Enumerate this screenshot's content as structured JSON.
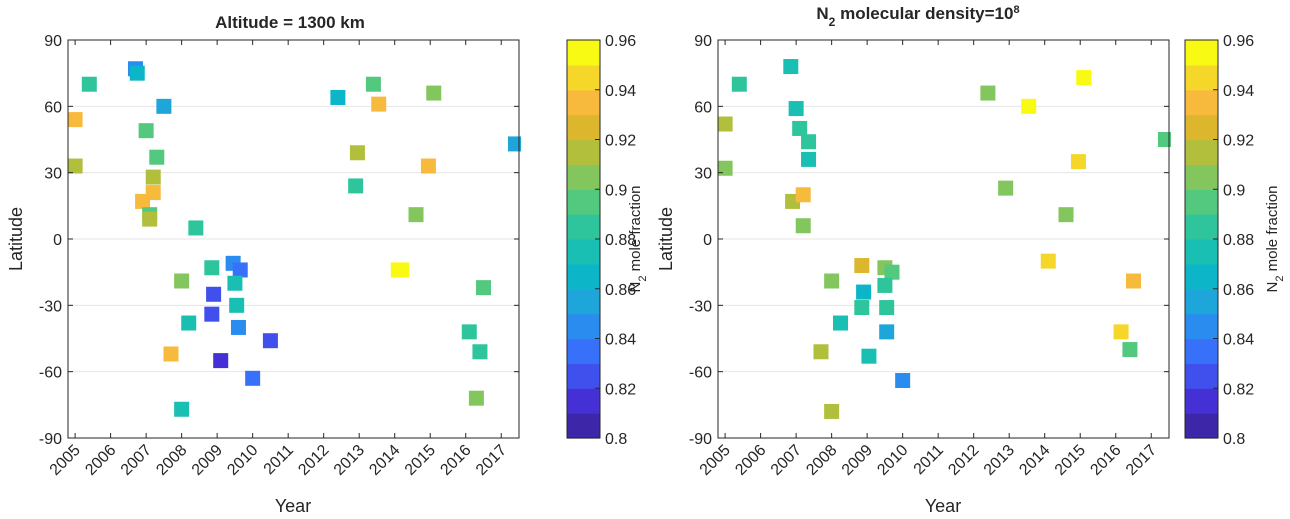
{
  "chart_data": [
    {
      "type": "scatter",
      "title": "Altitude = 1300 km",
      "xlabel": "Year",
      "ylabel": "Latitude",
      "xlim": [
        2004.8,
        2017.5
      ],
      "ylim": [
        -90,
        90
      ],
      "xticks": [
        "2005",
        "2006",
        "2007",
        "2008",
        "2009",
        "2010",
        "2011",
        "2012",
        "2013",
        "2014",
        "2015",
        "2016",
        "2017"
      ],
      "yticks": [
        "90",
        "60",
        "30",
        "0",
        "-30",
        "-60",
        "-90"
      ],
      "grid": "horizontal",
      "colorbar": {
        "label": "N",
        "label_sub": "2",
        "label_rest": " mole fraction",
        "range": [
          0.8,
          0.96
        ],
        "ticks": [
          "0.96",
          "0.94",
          "0.92",
          "0.9",
          "0.88",
          "0.86",
          "0.84",
          "0.82",
          "0.8"
        ],
        "levels": 16,
        "colors": [
          "#3e26a8",
          "#4530d5",
          "#4050ec",
          "#3771f9",
          "#2a8cef",
          "#1ea6db",
          "#0db5c9",
          "#18bfb2",
          "#2ec59c",
          "#53c87f",
          "#83c65e",
          "#b2bf3c",
          "#dcb72d",
          "#f8ba3d",
          "#f5d72a",
          "#f9fa14"
        ]
      },
      "points": [
        {
          "x": 2005.0,
          "y": 33,
          "v": 0.913
        },
        {
          "x": 2005.0,
          "y": 54,
          "v": 0.932
        },
        {
          "x": 2005.4,
          "y": 70,
          "v": 0.887
        },
        {
          "x": 2006.7,
          "y": 77,
          "v": 0.845
        },
        {
          "x": 2006.75,
          "y": 75,
          "v": 0.865
        },
        {
          "x": 2006.9,
          "y": 17,
          "v": 0.93
        },
        {
          "x": 2007.0,
          "y": 49,
          "v": 0.893
        },
        {
          "x": 2007.2,
          "y": 21,
          "v": 0.936
        },
        {
          "x": 2007.2,
          "y": 28,
          "v": 0.918
        },
        {
          "x": 2007.1,
          "y": 11,
          "v": 0.898
        },
        {
          "x": 2007.1,
          "y": 9,
          "v": 0.913
        },
        {
          "x": 2007.3,
          "y": 37,
          "v": 0.892
        },
        {
          "x": 2007.5,
          "y": 60,
          "v": 0.855
        },
        {
          "x": 2007.7,
          "y": -52,
          "v": 0.932
        },
        {
          "x": 2008.0,
          "y": -19,
          "v": 0.905
        },
        {
          "x": 2008.2,
          "y": -38,
          "v": 0.877
        },
        {
          "x": 2008.4,
          "y": 5,
          "v": 0.883
        },
        {
          "x": 2008.0,
          "y": -77,
          "v": 0.877
        },
        {
          "x": 2008.85,
          "y": -13,
          "v": 0.885
        },
        {
          "x": 2008.9,
          "y": -25,
          "v": 0.822
        },
        {
          "x": 2008.85,
          "y": -34,
          "v": 0.822
        },
        {
          "x": 2009.1,
          "y": -55,
          "v": 0.81
        },
        {
          "x": 2009.45,
          "y": -11,
          "v": 0.845
        },
        {
          "x": 2009.65,
          "y": -14,
          "v": 0.832
        },
        {
          "x": 2009.5,
          "y": -20,
          "v": 0.875
        },
        {
          "x": 2009.55,
          "y": -30,
          "v": 0.872
        },
        {
          "x": 2009.6,
          "y": -40,
          "v": 0.842
        },
        {
          "x": 2010.0,
          "y": -63,
          "v": 0.832
        },
        {
          "x": 2010.5,
          "y": -46,
          "v": 0.822
        },
        {
          "x": 2012.4,
          "y": 64,
          "v": 0.862
        },
        {
          "x": 2012.9,
          "y": 24,
          "v": 0.885
        },
        {
          "x": 2012.95,
          "y": 39,
          "v": 0.912
        },
        {
          "x": 2013.4,
          "y": 70,
          "v": 0.895
        },
        {
          "x": 2013.55,
          "y": 61,
          "v": 0.935
        },
        {
          "x": 2014.1,
          "y": -14,
          "v": 0.96
        },
        {
          "x": 2014.2,
          "y": -14,
          "v": 0.955
        },
        {
          "x": 2014.6,
          "y": 11,
          "v": 0.903
        },
        {
          "x": 2014.95,
          "y": 33,
          "v": 0.93
        },
        {
          "x": 2015.1,
          "y": 66,
          "v": 0.903
        },
        {
          "x": 2016.1,
          "y": -42,
          "v": 0.885
        },
        {
          "x": 2016.3,
          "y": -72,
          "v": 0.9
        },
        {
          "x": 2016.4,
          "y": -51,
          "v": 0.88
        },
        {
          "x": 2016.5,
          "y": -22,
          "v": 0.892
        },
        {
          "x": 2017.4,
          "y": 43,
          "v": 0.858
        }
      ]
    },
    {
      "type": "scatter",
      "title": "N",
      "title_sub": "2",
      "title_rest": " molecular density=10",
      "title_sup": "8",
      "xlabel": "Year",
      "ylabel": "Latitude",
      "xlim": [
        2004.8,
        2017.5
      ],
      "ylim": [
        -90,
        90
      ],
      "xticks": [
        "2005",
        "2006",
        "2007",
        "2008",
        "2009",
        "2010",
        "2011",
        "2012",
        "2013",
        "2014",
        "2015",
        "2016",
        "2017"
      ],
      "yticks": [
        "90",
        "60",
        "30",
        "0",
        "-30",
        "-60",
        "-90"
      ],
      "grid": "horizontal",
      "colorbar": {
        "label": "N",
        "label_sub": "2",
        "label_rest": " mole fraction",
        "range": [
          0.8,
          0.96
        ],
        "ticks": [
          "0.96",
          "0.94",
          "0.92",
          "0.9",
          "0.88",
          "0.86",
          "0.84",
          "0.82",
          "0.8"
        ],
        "levels": 16,
        "colors": [
          "#3e26a8",
          "#4530d5",
          "#4050ec",
          "#3771f9",
          "#2a8cef",
          "#1ea6db",
          "#0db5c9",
          "#18bfb2",
          "#2ec59c",
          "#53c87f",
          "#83c65e",
          "#b2bf3c",
          "#dcb72d",
          "#f8ba3d",
          "#f5d72a",
          "#f9fa14"
        ]
      },
      "points": [
        {
          "x": 2005.0,
          "y": 32,
          "v": 0.905
        },
        {
          "x": 2005.0,
          "y": 52,
          "v": 0.913
        },
        {
          "x": 2005.4,
          "y": 70,
          "v": 0.887
        },
        {
          "x": 2006.85,
          "y": 78,
          "v": 0.875
        },
        {
          "x": 2006.9,
          "y": 17,
          "v": 0.913
        },
        {
          "x": 2007.0,
          "y": 59,
          "v": 0.872
        },
        {
          "x": 2007.1,
          "y": 50,
          "v": 0.88
        },
        {
          "x": 2007.2,
          "y": 20,
          "v": 0.93
        },
        {
          "x": 2007.2,
          "y": 6,
          "v": 0.905
        },
        {
          "x": 2007.35,
          "y": 44,
          "v": 0.883
        },
        {
          "x": 2007.35,
          "y": 36,
          "v": 0.875
        },
        {
          "x": 2007.7,
          "y": -51,
          "v": 0.915
        },
        {
          "x": 2008.0,
          "y": -19,
          "v": 0.905
        },
        {
          "x": 2008.0,
          "y": -78,
          "v": 0.915
        },
        {
          "x": 2008.25,
          "y": -38,
          "v": 0.875
        },
        {
          "x": 2008.85,
          "y": -12,
          "v": 0.925
        },
        {
          "x": 2008.9,
          "y": -24,
          "v": 0.862
        },
        {
          "x": 2008.85,
          "y": -31,
          "v": 0.885
        },
        {
          "x": 2009.05,
          "y": -53,
          "v": 0.872
        },
        {
          "x": 2009.5,
          "y": -13,
          "v": 0.903
        },
        {
          "x": 2009.7,
          "y": -15,
          "v": 0.892
        },
        {
          "x": 2009.5,
          "y": -21,
          "v": 0.885
        },
        {
          "x": 2009.55,
          "y": -31,
          "v": 0.882
        },
        {
          "x": 2009.55,
          "y": -42,
          "v": 0.858
        },
        {
          "x": 2010.0,
          "y": -64,
          "v": 0.842
        },
        {
          "x": 2012.4,
          "y": 66,
          "v": 0.903
        },
        {
          "x": 2012.9,
          "y": 23,
          "v": 0.903
        },
        {
          "x": 2013.55,
          "y": 60,
          "v": 0.955
        },
        {
          "x": 2014.1,
          "y": -10,
          "v": 0.945
        },
        {
          "x": 2014.6,
          "y": 11,
          "v": 0.905
        },
        {
          "x": 2014.95,
          "y": 35,
          "v": 0.948
        },
        {
          "x": 2015.1,
          "y": 73,
          "v": 0.955
        },
        {
          "x": 2016.15,
          "y": -42,
          "v": 0.945
        },
        {
          "x": 2016.4,
          "y": -50,
          "v": 0.898
        },
        {
          "x": 2016.5,
          "y": -19,
          "v": 0.935
        },
        {
          "x": 2017.4,
          "y": 45,
          "v": 0.895
        }
      ]
    }
  ]
}
